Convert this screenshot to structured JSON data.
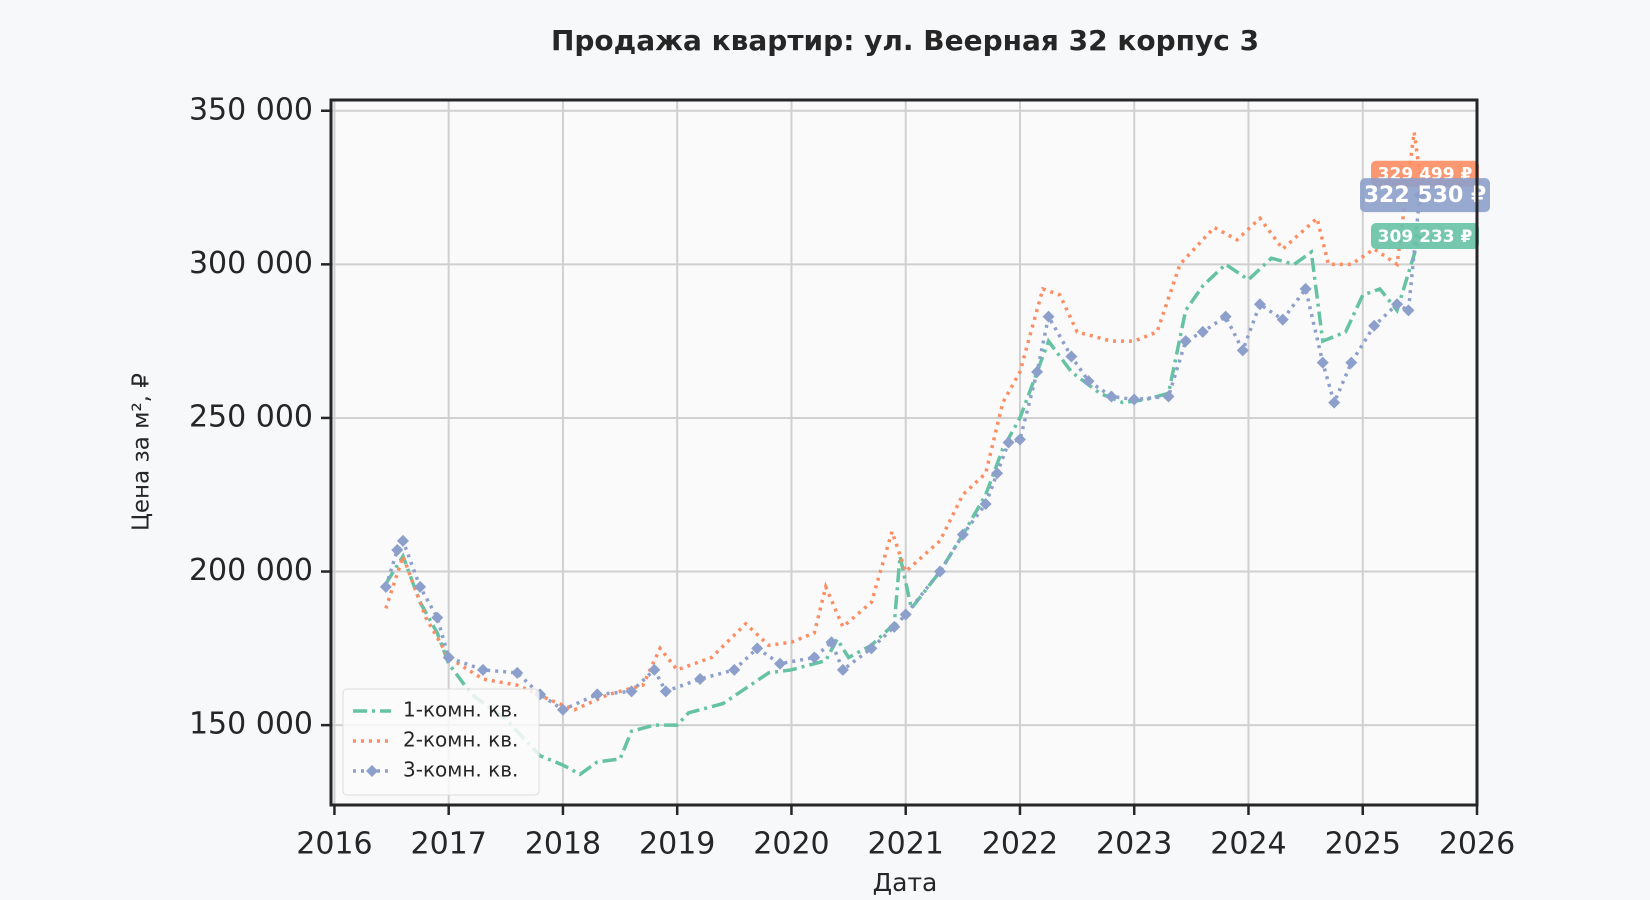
{
  "chart_data": {
    "type": "line",
    "title": "Продажа квартир: ул. Веерная 32 корпус 3",
    "x_label": "Дата",
    "y_label": "Цена за м², ₽",
    "xlim": [
      2015.97,
      2026
    ],
    "xticks": [
      2016,
      2017,
      2018,
      2019,
      2020,
      2021,
      2022,
      2023,
      2024,
      2025,
      2026
    ],
    "ylim": [
      124000,
      353500
    ],
    "yticks": [
      {
        "value": 150000,
        "label": "150 000"
      },
      {
        "value": 200000,
        "label": "200 000"
      },
      {
        "value": 250000,
        "label": "250 000"
      },
      {
        "value": 300000,
        "label": "300 000"
      },
      {
        "value": 350000,
        "label": "350 000"
      }
    ],
    "grid": true,
    "legend": "lower left",
    "series": [
      {
        "name": "1-комн. кв.",
        "color": "#66c2a5",
        "dash": "dashdot",
        "x": [
          2016.45,
          2016.6,
          2016.75,
          2016.9,
          2017.0,
          2017.2,
          2017.5,
          2017.8,
          2018.0,
          2018.15,
          2018.3,
          2018.5,
          2018.6,
          2018.8,
          2019.0,
          2019.1,
          2019.4,
          2019.6,
          2019.8,
          2020.0,
          2020.3,
          2020.4,
          2020.5,
          2020.7,
          2020.9,
          2020.95,
          2021.05,
          2021.3,
          2021.5,
          2021.7,
          2021.85,
          2022.0,
          2022.15,
          2022.25,
          2022.45,
          2022.7,
          2022.9,
          2023.1,
          2023.3,
          2023.45,
          2023.6,
          2023.8,
          2024.0,
          2024.2,
          2024.4,
          2024.55,
          2024.65,
          2024.85,
          2025.0,
          2025.15,
          2025.3,
          2025.5
        ],
        "values": [
          196000,
          205000,
          190000,
          180000,
          170000,
          160000,
          152000,
          140000,
          137000,
          134000,
          138000,
          139000,
          148000,
          150000,
          150000,
          154000,
          157000,
          162000,
          167000,
          168000,
          171000,
          178000,
          172000,
          176000,
          183000,
          205000,
          188000,
          200000,
          212000,
          225000,
          240000,
          250000,
          265000,
          275000,
          265000,
          258000,
          255000,
          256000,
          258000,
          285000,
          293000,
          300000,
          295000,
          302000,
          300000,
          304000,
          275000,
          278000,
          290000,
          292000,
          285000,
          309233
        ]
      },
      {
        "name": "2-комн. кв.",
        "color": "#fc8d62",
        "dash": "dotted",
        "x": [
          2016.45,
          2016.6,
          2016.8,
          2017.0,
          2017.3,
          2017.6,
          2017.9,
          2018.1,
          2018.4,
          2018.7,
          2018.85,
          2019.0,
          2019.3,
          2019.6,
          2019.8,
          2020.0,
          2020.2,
          2020.3,
          2020.45,
          2020.7,
          2020.88,
          2021.0,
          2021.3,
          2021.5,
          2021.7,
          2021.85,
          2022.0,
          2022.2,
          2022.35,
          2022.5,
          2022.8,
          2023.0,
          2023.2,
          2023.4,
          2023.7,
          2023.9,
          2024.1,
          2024.3,
          2024.6,
          2024.7,
          2024.9,
          2025.1,
          2025.3,
          2025.45,
          2025.5
        ],
        "values": [
          188000,
          205000,
          185000,
          172000,
          165000,
          163000,
          158000,
          155000,
          160000,
          163000,
          175000,
          168000,
          172000,
          183000,
          176000,
          177000,
          180000,
          195000,
          182000,
          190000,
          213000,
          200000,
          210000,
          225000,
          232000,
          255000,
          265000,
          292000,
          290000,
          278000,
          275000,
          275000,
          278000,
          300000,
          312000,
          308000,
          315000,
          305000,
          315000,
          300000,
          300000,
          305000,
          300000,
          343000,
          329499
        ]
      },
      {
        "name": "3-комн. кв.",
        "color": "#8da0cb",
        "dash": "dotted",
        "marker": "diamond",
        "x": [
          2016.45,
          2016.55,
          2016.6,
          2016.75,
          2016.9,
          2017.0,
          2017.3,
          2017.6,
          2017.8,
          2018.0,
          2018.3,
          2018.6,
          2018.8,
          2018.9,
          2019.2,
          2019.5,
          2019.7,
          2019.9,
          2020.2,
          2020.35,
          2020.45,
          2020.7,
          2020.9,
          2021.0,
          2021.3,
          2021.5,
          2021.7,
          2021.8,
          2021.9,
          2022.0,
          2022.15,
          2022.25,
          2022.45,
          2022.6,
          2022.8,
          2023.0,
          2023.3,
          2023.45,
          2023.6,
          2023.8,
          2023.95,
          2024.1,
          2024.3,
          2024.5,
          2024.65,
          2024.75,
          2024.9,
          2025.1,
          2025.3,
          2025.4,
          2025.5
        ],
        "values": [
          195000,
          207000,
          210000,
          195000,
          185000,
          172000,
          168000,
          167000,
          160000,
          155000,
          160000,
          161000,
          168000,
          161000,
          165000,
          168000,
          175000,
          170000,
          172000,
          177000,
          168000,
          175000,
          182000,
          186000,
          200000,
          212000,
          222000,
          232000,
          242000,
          243000,
          265000,
          283000,
          270000,
          262000,
          257000,
          256000,
          257000,
          275000,
          278000,
          283000,
          272000,
          287000,
          282000,
          292000,
          268000,
          255000,
          268000,
          280000,
          287000,
          285000,
          322530
        ]
      }
    ],
    "annotations": [
      {
        "label": "329 499 ₽",
        "value": 329499,
        "color": "#fc8d62"
      },
      {
        "label": "322 530 ₽",
        "value": 322530,
        "color": "#8da0cb"
      },
      {
        "label": "309 233 ₽",
        "value": 309233,
        "color": "#66c2a5"
      }
    ]
  }
}
